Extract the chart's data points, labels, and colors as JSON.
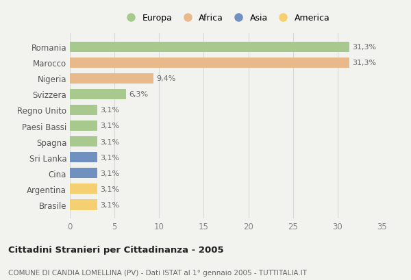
{
  "countries": [
    "Romania",
    "Marocco",
    "Nigeria",
    "Svizzera",
    "Regno Unito",
    "Paesi Bassi",
    "Spagna",
    "Sri Lanka",
    "Cina",
    "Argentina",
    "Brasile"
  ],
  "values": [
    31.3,
    31.3,
    9.4,
    6.3,
    3.1,
    3.1,
    3.1,
    3.1,
    3.1,
    3.1,
    3.1
  ],
  "labels": [
    "31,3%",
    "31,3%",
    "9,4%",
    "6,3%",
    "3,1%",
    "3,1%",
    "3,1%",
    "3,1%",
    "3,1%",
    "3,1%",
    "3,1%"
  ],
  "colors": [
    "#a8c98e",
    "#e8b98a",
    "#e8b98a",
    "#a8c98e",
    "#a8c98e",
    "#a8c98e",
    "#a8c98e",
    "#7090c0",
    "#7090c0",
    "#f5d070",
    "#f5d070"
  ],
  "legend_labels": [
    "Europa",
    "Africa",
    "Asia",
    "America"
  ],
  "legend_colors": [
    "#a8c98e",
    "#e8b98a",
    "#7090c0",
    "#f5d070"
  ],
  "xlim": [
    0,
    35
  ],
  "xticks": [
    0,
    5,
    10,
    15,
    20,
    25,
    30,
    35
  ],
  "title": "Cittadini Stranieri per Cittadinanza - 2005",
  "subtitle": "COMUNE DI CANDIA LOMELLINA (PV) - Dati ISTAT al 1° gennaio 2005 - TUTTITALIA.IT",
  "bg_color": "#f2f2ee",
  "bar_height": 0.65,
  "label_color": "#666666",
  "grid_color": "#d8d8d8"
}
